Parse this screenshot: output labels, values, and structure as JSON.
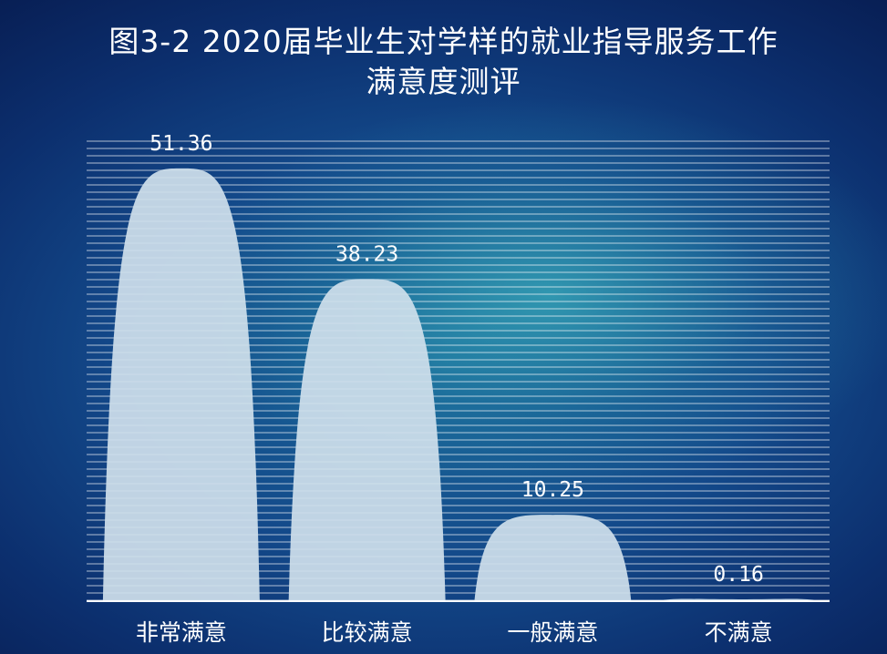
{
  "chart_data": {
    "type": "bar",
    "title": "图3-2 2020届毕业生对学样的就业指导服务工作",
    "subtitle": "满意度测评",
    "categories": [
      "非常满意",
      "比较满意",
      "一般满意",
      "不满意"
    ],
    "values": [
      51.36,
      38.23,
      10.25,
      0.16
    ],
    "value_labels": [
      "51.36",
      "38.23",
      "10.25",
      "0.16"
    ],
    "bar_shape": "rounded-arch",
    "ylim": [
      0,
      55
    ],
    "grid": true,
    "legend": "none",
    "colors": {
      "bar": "#cfe0ec",
      "grid": "#ffffff",
      "text": "#ffffff",
      "background_center": "#2aa6b0",
      "background_edge": "#0a2a6a"
    }
  }
}
